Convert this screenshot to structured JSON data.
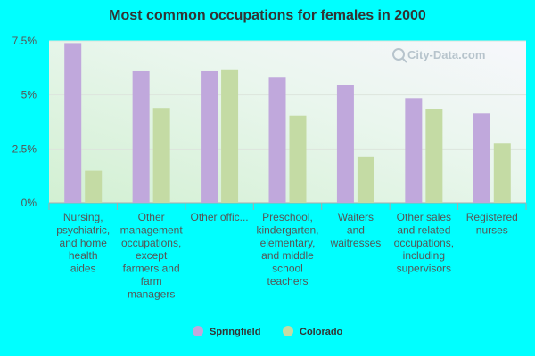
{
  "chart_data": {
    "type": "bar",
    "title": "Most common occupations for females in 2000",
    "categories": [
      [
        "Nursing,",
        "psychiatric,",
        "and home",
        "health",
        "aides"
      ],
      [
        "Other",
        "management",
        "occupations,",
        "except",
        "farmers and",
        "farm",
        "managers"
      ],
      [
        "Other offic..."
      ],
      [
        "Preschool,",
        "kindergarten,",
        "elementary,",
        "and middle",
        "school",
        "teachers"
      ],
      [
        "Waiters",
        "and",
        "waitresses"
      ],
      [
        "Other sales",
        "and related",
        "occupations,",
        "including",
        "supervisors"
      ],
      [
        "Registered",
        "nurses"
      ]
    ],
    "series": [
      {
        "name": "Springfield",
        "color": "#c0a8dc",
        "values": [
          7.4,
          6.1,
          6.1,
          5.8,
          5.45,
          4.85,
          4.15
        ]
      },
      {
        "name": "Colorado",
        "color": "#c4dba4",
        "values": [
          1.5,
          4.4,
          6.15,
          4.05,
          2.15,
          4.35,
          2.75
        ]
      }
    ],
    "yticks": [
      {
        "value": 0,
        "label": "0%"
      },
      {
        "value": 2.5,
        "label": "2.5%"
      },
      {
        "value": 5,
        "label": "5%"
      },
      {
        "value": 7.5,
        "label": "7.5%"
      }
    ],
    "ylim": [
      0,
      7.5
    ],
    "grid": true,
    "legend_position": "bottom"
  },
  "watermark": "City-Data.com"
}
